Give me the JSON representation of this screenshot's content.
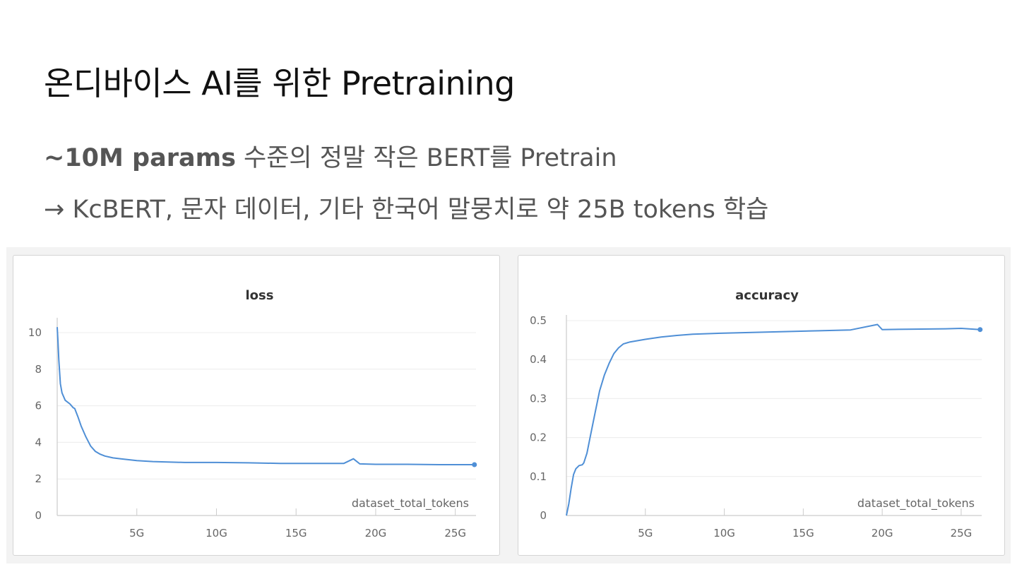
{
  "slide": {
    "title": "온디바이스 AI를 위한 Pretraining",
    "line1_bold": "~10M params",
    "line1_rest": " 수준의 정말 작은 BERT를 Pretrain",
    "line2": "→ KcBERT, 문자 데이터, 기타 한국어 말뭉치로 약 25B tokens 학습"
  },
  "colors": {
    "series": "#4f8fd6",
    "grid": "#ececec",
    "axis": "#cccccc"
  },
  "chart_data": [
    {
      "type": "line",
      "title": "loss",
      "xlabel": "dataset_total_tokens",
      "ylabel": "",
      "xlim": [
        0,
        26.3
      ],
      "ylim": [
        0,
        10.5
      ],
      "x_ticks": [
        5,
        10,
        15,
        20,
        25
      ],
      "x_tick_labels": [
        "5G",
        "10G",
        "15G",
        "20G",
        "25G"
      ],
      "y_ticks": [
        0,
        2,
        4,
        6,
        8,
        10
      ],
      "y_tick_labels": [
        "0",
        "2",
        "4",
        "6",
        "8",
        "10"
      ],
      "grid": true,
      "series": [
        {
          "x": [
            0.0,
            0.05,
            0.1,
            0.2,
            0.3,
            0.5,
            0.8,
            1.0,
            1.1,
            1.3,
            1.5,
            1.8,
            2.1,
            2.4,
            2.7,
            3.0,
            3.5,
            4.0,
            5.0,
            6.0,
            8.0,
            10.0,
            12.0,
            14.0,
            16.0,
            18.0,
            18.6,
            19.0,
            20.0,
            22.0,
            24.0,
            26.2
          ],
          "y": [
            10.3,
            9.5,
            8.5,
            7.2,
            6.7,
            6.3,
            6.1,
            5.9,
            5.85,
            5.4,
            4.9,
            4.3,
            3.8,
            3.5,
            3.35,
            3.25,
            3.15,
            3.1,
            3.0,
            2.95,
            2.9,
            2.9,
            2.88,
            2.85,
            2.85,
            2.85,
            3.1,
            2.82,
            2.8,
            2.8,
            2.78,
            2.78
          ]
        }
      ]
    },
    {
      "type": "line",
      "title": "accuracy",
      "xlabel": "dataset_total_tokens",
      "ylabel": "",
      "xlim": [
        0,
        26.3
      ],
      "ylim": [
        0,
        0.5
      ],
      "x_ticks": [
        5,
        10,
        15,
        20,
        25
      ],
      "x_tick_labels": [
        "5G",
        "10G",
        "15G",
        "20G",
        "25G"
      ],
      "y_ticks": [
        0,
        0.1,
        0.2,
        0.3,
        0.4,
        0.5
      ],
      "y_tick_labels": [
        "0",
        "0.1",
        "0.2",
        "0.3",
        "0.4",
        "0.5"
      ],
      "grid": true,
      "series": [
        {
          "x": [
            0.0,
            0.15,
            0.3,
            0.45,
            0.6,
            0.8,
            1.0,
            1.1,
            1.3,
            1.5,
            1.8,
            2.1,
            2.4,
            2.7,
            3.0,
            3.3,
            3.6,
            4.0,
            5.0,
            6.0,
            7.0,
            8.0,
            10.0,
            12.0,
            14.0,
            16.0,
            18.0,
            19.7,
            20.0,
            22.0,
            24.0,
            25.0,
            26.2
          ],
          "y": [
            0.0,
            0.03,
            0.07,
            0.105,
            0.12,
            0.128,
            0.13,
            0.135,
            0.16,
            0.2,
            0.26,
            0.32,
            0.36,
            0.39,
            0.415,
            0.43,
            0.44,
            0.445,
            0.452,
            0.458,
            0.462,
            0.465,
            0.468,
            0.47,
            0.472,
            0.474,
            0.476,
            0.49,
            0.477,
            0.478,
            0.479,
            0.48,
            0.477
          ]
        }
      ]
    }
  ]
}
